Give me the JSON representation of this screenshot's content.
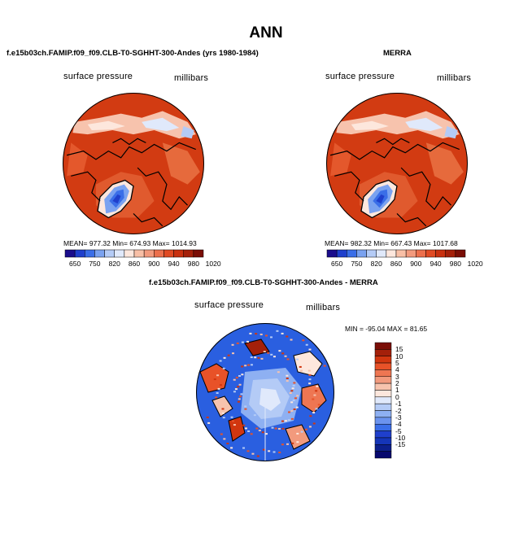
{
  "title": "ANN",
  "panels": [
    {
      "heading": "f.e15b03ch.FAMIP.f09_f09.CLB-T0-SGHHT-300-Andes (yrs 1980-1984)",
      "left_label": "surface pressure",
      "right_label": "millibars",
      "stats": {
        "mean": "977.32",
        "min": "674.93",
        "max": "1014.93"
      },
      "stats_text": "MEAN= 977.32   Min= 674.93   Max= 1014.93"
    },
    {
      "heading": "MERRA",
      "left_label": "surface pressure",
      "right_label": "millibars",
      "stats": {
        "mean": "982.32",
        "min": "667.43",
        "max": "1017.68"
      },
      "stats_text": "MEAN= 982.32   Min= 667.43   Max= 1017.68"
    },
    {
      "heading": "f.e15b03ch.FAMIP.f09_f09.CLB-T0-SGHHT-300-Andes - MERRA",
      "left_label": "surface pressure",
      "right_label": "millibars",
      "stats": {
        "min": "-95.04",
        "max": "81.65"
      },
      "stats_text": "MIN = -95.04 MAX =  81.65"
    }
  ],
  "colorbar_abs": {
    "ticks": [
      "650",
      "750",
      "820",
      "860",
      "900",
      "940",
      "980",
      "1020"
    ],
    "colors": [
      "#1a0d8c",
      "#1f3fcc",
      "#3a6ee8",
      "#7aa2f0",
      "#b4cbf6",
      "#e0e9fb",
      "#fde7dd",
      "#f8bfa6",
      "#f29a7d",
      "#ec6f4c",
      "#e04a23",
      "#c8300f",
      "#a4200a",
      "#7a0e06"
    ]
  },
  "colorbar_diff": {
    "ticks": [
      "15",
      "10",
      "5",
      "4",
      "3",
      "2",
      "1",
      "0",
      "-1",
      "-2",
      "-3",
      "-4",
      "-5",
      "-10",
      "-15"
    ],
    "colors": [
      "#7a0e06",
      "#a4200a",
      "#d1360f",
      "#e85228",
      "#ee7652",
      "#f29a7d",
      "#f7c3ad",
      "#fde7dd",
      "#e0e9fb",
      "#b4cbf6",
      "#8eb0f2",
      "#6b93ee",
      "#3a6ee8",
      "#1f3fcc",
      "#1535b8",
      "#0c1f8c",
      "#06086e"
    ]
  },
  "colors": {
    "land_red": "#c8300f",
    "ocean_blue_diff": "#2a5fe0",
    "coast": "#000000"
  }
}
